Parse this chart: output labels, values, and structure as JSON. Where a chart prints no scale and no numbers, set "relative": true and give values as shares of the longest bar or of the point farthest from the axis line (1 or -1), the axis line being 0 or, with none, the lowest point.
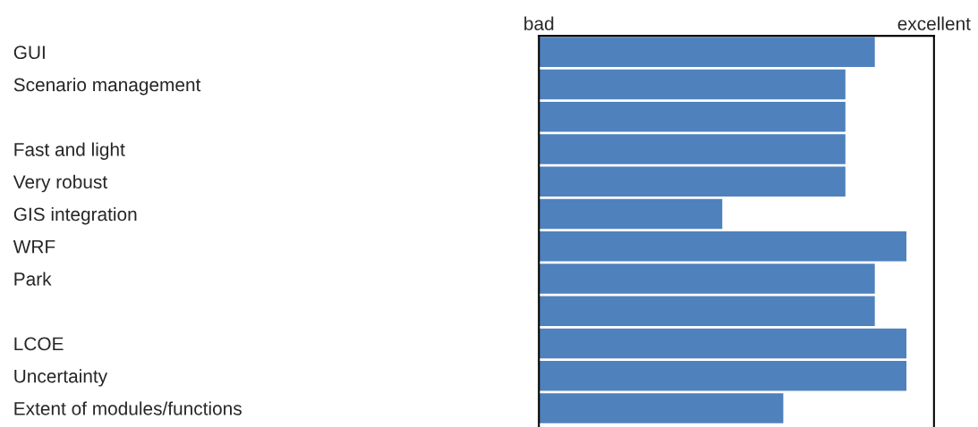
{
  "chart_data": {
    "type": "bar",
    "orientation": "horizontal",
    "relative": true,
    "categories": [
      "GUI",
      "Scenario management",
      null,
      "Fast and light",
      "Very robust",
      "GIS integration",
      "WRF",
      "Park",
      null,
      "LCOE",
      "Uncertainty",
      "Extent of modules/functions"
    ],
    "values": [
      0.914,
      0.834,
      0.834,
      0.834,
      0.834,
      0.499,
      1,
      0.914,
      0.914,
      1,
      1,
      0.665
    ],
    "color": "#4f81bd",
    "annotations": [
      "bad",
      "excellent"
    ],
    "grid": false,
    "legend": false
  }
}
